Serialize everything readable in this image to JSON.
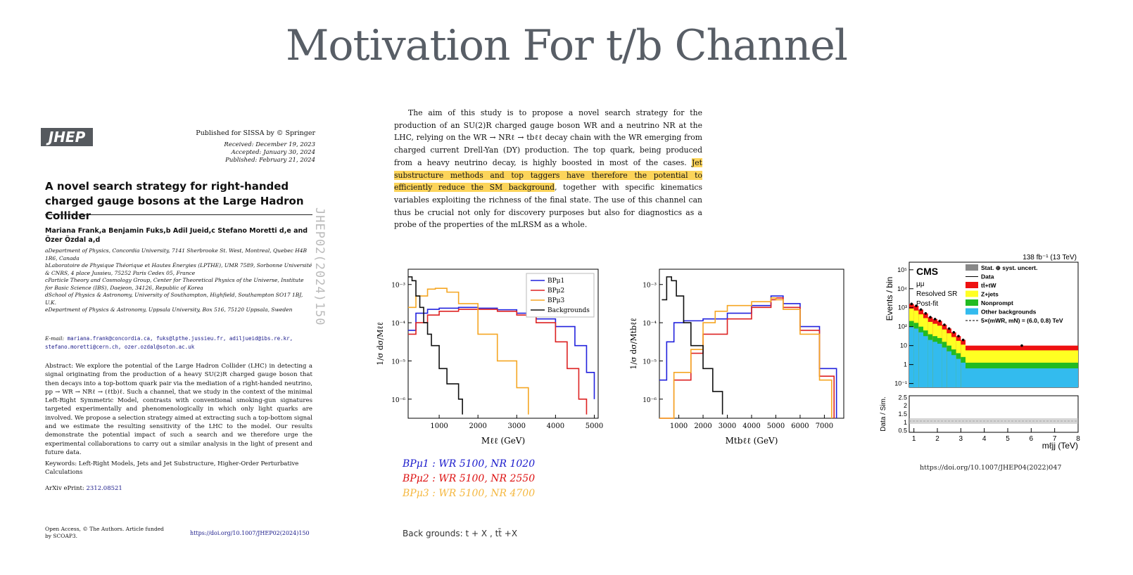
{
  "slide_title": "Motivation For t/b Channel",
  "paper": {
    "logo": "JHEP",
    "published_for": "Published for SISSA by © Springer",
    "received": "Received: December 19, 2023",
    "accepted": "Accepted: January 30, 2024",
    "published": "Published: February 21, 2024",
    "title": "A novel search strategy for right-handed charged gauge bosons at the Large Hadron Collider",
    "authors": "Mariana Frank,a Benjamin Fuks,b Adil Jueid,c Stefano Moretti d,e and Özer Özdal a,d",
    "affiliations": [
      "aDepartment of Physics, Concordia University, 7141 Sherbrooke St. West, Montreal, Quebec H4B 1R6, Canada",
      "bLaboratoire de Physique Théorique et Hautes Énergies (LPTHE), UMR 7589, Sorbonne Université & CNRS, 4 place Jussieu, 75252 Paris Cedex 05, France",
      "cParticle Theory and Cosmology Group, Center for Theoretical Physics of the Universe, Institute for Basic Science (IBS), Daejeon, 34126, Republic of Korea",
      "dSchool of Physics & Astronomy, University of Southampton, Highfield, Southampton SO17 1BJ, U.K.",
      "eDepartment of Physics & Astronomy, Uppsala University, Box 516, 75120 Uppsala, Sweden"
    ],
    "email_label": "E-mail:",
    "emails": "mariana.frank@concordia.ca, fuks@lpthe.jussieu.fr, adiljueid@ibs.re.kr, stefano.moretti@cern.ch, ozer.ozdal@soton.ac.uk",
    "abstract": "Abstract: We explore the potential of the Large Hadron Collider (LHC) in detecting a signal originating from the production of a heavy SU(2)R charged gauge boson that then decays into a top-bottom quark pair via the mediation of a right-handed neutrino, pp → WR → NRℓ → (ℓtb)ℓ. Such a channel, that we study in the context of the minimal Left-Right Symmetric Model, contrasts with conventional smoking-gun signatures targeted experimentally and phenomenologically in which only light quarks are involved. We propose a selection strategy aimed at extracting such a top-bottom signal and we estimate the resulting sensitivity of the LHC to the model. Our results demonstrate the potential impact of such a search and we therefore urge the experimental collaborations to carry out a similar analysis in the light of present and future data.",
    "keywords": "Keywords: Left-Right Models, Jets and Jet Substructure, Higher-Order Perturbative Calculations",
    "arxiv_label": "ArXiv ePrint:",
    "arxiv_id": "2312.08521",
    "open_access": "Open Access, © The Authors. Article funded by SCOAP3.",
    "doi": "https://doi.org/10.1007/JHEP02(2024)150",
    "vertical_id": "JHEP02(2024)150"
  },
  "excerpt": {
    "part1": "The aim of this study is to propose a novel search strategy for the production of an SU(2)R charged gauge boson WR and a neutrino NR at the LHC, relying on the WR → NRℓ → tbℓℓ decay chain with the WR emerging from charged current Drell-Yan (DY) production. The top quark, being produced from a heavy neutrino decay, is highly boosted in most of the cases. ",
    "highlight": "Jet substructure methods and top taggers have therefore the potential to efficiently reduce the SM background",
    "part2": ", together with specific kinematics variables exploiting the richness of the final state. The use of this channel can thus be crucial not only for discovery purposes but also for diagnostics as a probe of the properties of the mLRSM as a whole."
  },
  "bp_legend": [
    {
      "label": "BPμ1 : WR 5100, NR 1020",
      "color": "#1a1acc"
    },
    {
      "label": "BPμ2 : WR 5100, NR 2550",
      "color": "#dd1111"
    },
    {
      "label": "BPμ3 : WR 5100, NR 4700",
      "color": "#f5b840"
    }
  ],
  "backgrounds_note": "Back grounds: t + X  , tt̄ +X",
  "cms_doi": "https://doi.org/10.1007/JHEP04(2022)047",
  "colors": {
    "bp1": "#2222dd",
    "bp2": "#dd2222",
    "bp3": "#f5a623",
    "bkg": "#111111",
    "highlight": "#fcd45a"
  },
  "chart_data": [
    {
      "type": "line",
      "xlabel": "Mℓℓ (GeV)",
      "ylabel": "1/σ dσ/Mℓℓ",
      "xlim": [
        200,
        5100
      ],
      "ylim_log10": [
        -6.5,
        -2.6
      ],
      "log_y": true,
      "xticks": [
        "1000",
        "2000",
        "3000",
        "4000",
        "5000"
      ],
      "yticks": [
        "10⁻³",
        "10⁻⁴",
        "10⁻⁵",
        "10⁻⁶"
      ],
      "legend": [
        "BPμ1",
        "BPμ2",
        "BPμ3",
        "Backgrounds"
      ],
      "legend_position": "top-right",
      "series": [
        {
          "name": "BPμ1",
          "x": [
            200,
            400,
            700,
            1000,
            1500,
            2000,
            2500,
            3000,
            3500,
            4000,
            4500,
            4800,
            5000
          ],
          "log10y": [
            -4.2,
            -3.75,
            -3.65,
            -3.62,
            -3.6,
            -3.62,
            -3.66,
            -3.75,
            -3.9,
            -4.1,
            -4.6,
            -5.3,
            -6.0
          ]
        },
        {
          "name": "BPμ2",
          "x": [
            200,
            400,
            700,
            1000,
            1500,
            2000,
            2500,
            3000,
            3500,
            4000,
            4300,
            4600,
            4800
          ],
          "log10y": [
            -4.3,
            -4.0,
            -3.8,
            -3.7,
            -3.65,
            -3.65,
            -3.7,
            -3.8,
            -4.0,
            -4.5,
            -5.2,
            -6.0,
            -6.4
          ]
        },
        {
          "name": "BPμ3",
          "x": [
            200,
            400,
            700,
            900,
            1200,
            1500,
            2000,
            2500,
            3000,
            3300
          ],
          "log10y": [
            -3.6,
            -3.3,
            -3.12,
            -3.1,
            -3.2,
            -3.5,
            -4.3,
            -5.0,
            -5.7,
            -6.4
          ]
        },
        {
          "name": "Backgrounds",
          "x": [
            200,
            300,
            400,
            500,
            600,
            700,
            800,
            1000,
            1200,
            1500,
            1600
          ],
          "log10y": [
            -2.8,
            -2.9,
            -3.3,
            -3.6,
            -4.0,
            -4.3,
            -4.6,
            -5.2,
            -5.6,
            -6.0,
            -6.4
          ]
        }
      ]
    },
    {
      "type": "line",
      "xlabel": "Mtbℓℓ (GeV)",
      "ylabel": "1/σ dσ/Mtbℓℓ",
      "xlim": [
        200,
        7800
      ],
      "ylim_log10": [
        -6.5,
        -2.6
      ],
      "log_y": true,
      "xticks": [
        "1000",
        "2000",
        "3000",
        "4000",
        "5000",
        "6000",
        "7000"
      ],
      "yticks": [
        "10⁻³",
        "10⁻⁴",
        "10⁻⁵",
        "10⁻⁶"
      ],
      "series": [
        {
          "name": "BPμ1",
          "x": [
            200,
            500,
            800,
            1200,
            2000,
            3000,
            4000,
            4800,
            5000,
            5300,
            6000,
            6800,
            7500
          ],
          "log10y": [
            -5.5,
            -4.5,
            -4.0,
            -3.95,
            -3.9,
            -3.75,
            -3.55,
            -3.3,
            -3.3,
            -3.5,
            -4.1,
            -5.2,
            -6.5
          ]
        },
        {
          "name": "BPμ2",
          "x": [
            200,
            800,
            1500,
            2000,
            3000,
            4000,
            4800,
            5000,
            5300,
            6000,
            6800,
            7400
          ],
          "log10y": [
            -6.5,
            -5.5,
            -4.8,
            -4.3,
            -3.9,
            -3.6,
            -3.4,
            -3.35,
            -3.6,
            -4.2,
            -5.4,
            -6.5
          ]
        },
        {
          "name": "BPμ3",
          "x": [
            200,
            800,
            1500,
            2000,
            2500,
            3000,
            4000,
            4800,
            5000,
            5300,
            6000,
            6800,
            7300
          ],
          "log10y": [
            -6.5,
            -5.3,
            -4.7,
            -4.0,
            -3.7,
            -3.55,
            -3.45,
            -3.35,
            -3.4,
            -3.65,
            -4.3,
            -5.5,
            -6.5
          ]
        },
        {
          "name": "Backgrounds",
          "x": [
            300,
            500,
            700,
            900,
            1200,
            1500,
            2000,
            2400,
            2800
          ],
          "log10y": [
            -3.4,
            -2.8,
            -2.9,
            -3.3,
            -4.0,
            -4.6,
            -5.2,
            -5.8,
            -6.4
          ]
        }
      ]
    },
    {
      "type": "bar",
      "title": "138 fb⁻¹ (13 TeV)",
      "xlabel": "mℓjj (TeV)",
      "ylabel": "Events / bin",
      "ratio_ylabel": "Data / Sim.",
      "labels": [
        "CMS",
        "μμ",
        "Resolved SR",
        "Post-fit"
      ],
      "yticks": [
        "10⁵",
        "10⁴",
        "10³",
        "10²",
        "10",
        "1",
        "10⁻¹"
      ],
      "xticks": [
        "1",
        "2",
        "3",
        "4",
        "5",
        "6",
        "7",
        "8"
      ],
      "ratio_yticks": [
        "2.5",
        "2",
        "1.5",
        "1",
        "0.5"
      ],
      "legend": [
        "Stat. ⊕ syst. uncert.",
        "Data",
        "tt̄+tW",
        "Z+jets",
        "Nonprompt",
        "Other backgrounds",
        "5×(mWR, mN) = (6.0, 0.8) TeV"
      ],
      "legend_colors": [
        "#888888",
        "#000000",
        "#ee1111",
        "#ffff22",
        "#22bb22",
        "#33bbee",
        "#000000"
      ],
      "bins": [
        0.8,
        1.0,
        1.2,
        1.4,
        1.6,
        1.8,
        2.0,
        2.2,
        2.4,
        2.6,
        2.8,
        3.0,
        3.2,
        8.0
      ],
      "total_log10": [
        3.2,
        3.1,
        2.9,
        2.7,
        2.5,
        2.4,
        2.3,
        2.1,
        1.9,
        1.7,
        1.5,
        1.3,
        1.0
      ]
    }
  ]
}
